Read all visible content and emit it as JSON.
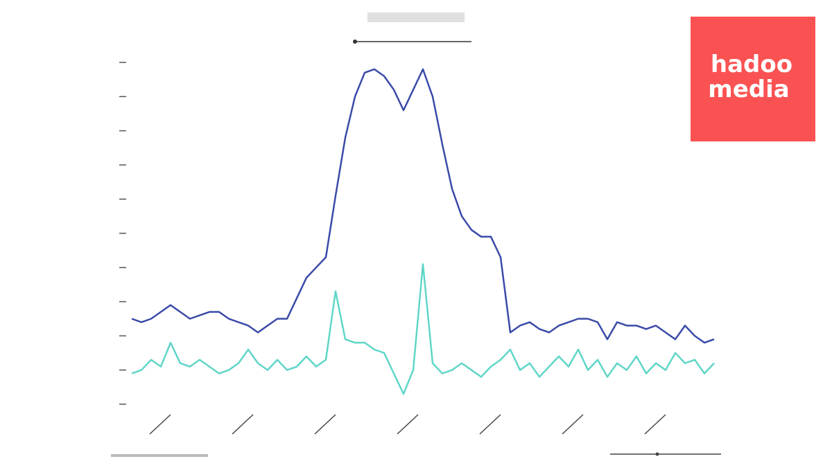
{
  "chart_data": {
    "type": "line",
    "x": [
      0,
      1,
      2,
      3,
      4,
      5,
      6,
      7,
      8,
      9,
      10,
      11,
      12,
      13,
      14,
      15,
      16,
      17,
      18,
      19,
      20,
      21,
      22,
      23,
      24,
      25,
      26,
      27,
      28,
      29,
      30,
      31,
      32,
      33,
      34,
      35,
      36,
      37,
      38,
      39,
      40,
      41,
      42,
      43,
      44,
      45,
      46,
      47,
      48,
      49,
      50,
      51,
      52,
      53,
      54,
      55,
      56,
      57,
      58,
      59,
      60
    ],
    "series": [
      {
        "color": "#3a4aa8",
        "values": [
          2.5,
          2.4,
          2.5,
          2.7,
          2.9,
          2.7,
          2.5,
          2.6,
          2.7,
          2.7,
          2.5,
          2.4,
          2.3,
          2.1,
          2.3,
          2.5,
          2.5,
          3.1,
          3.7,
          4.0,
          4.3,
          6.1,
          7.8,
          9.0,
          9.7,
          9.8,
          9.6,
          9.2,
          8.6,
          9.2,
          9.8,
          9.0,
          7.6,
          6.3,
          5.5,
          5.1,
          4.9,
          4.9,
          4.3,
          2.1,
          2.3,
          2.4,
          2.2,
          2.1,
          2.3,
          2.4,
          2.5,
          2.5,
          2.4,
          1.9,
          2.4,
          2.3,
          2.3,
          2.2,
          2.3,
          2.1,
          1.9,
          2.3,
          2.0,
          1.8,
          1.9
        ]
      },
      {
        "color": "#5fd6c8",
        "values": [
          0.9,
          1.0,
          1.3,
          1.1,
          1.8,
          1.2,
          1.1,
          1.3,
          1.1,
          0.9,
          1.0,
          1.2,
          1.6,
          1.2,
          1.0,
          1.3,
          1.0,
          1.1,
          1.4,
          1.1,
          1.3,
          3.3,
          1.9,
          1.8,
          1.8,
          1.6,
          1.5,
          0.9,
          0.3,
          1.0,
          4.1,
          1.2,
          0.9,
          1.0,
          1.2,
          1.0,
          0.8,
          1.1,
          1.3,
          1.6,
          1.0,
          1.2,
          0.8,
          1.1,
          1.4,
          1.1,
          1.6,
          1.0,
          1.3,
          0.8,
          1.2,
          1.0,
          1.4,
          0.9,
          1.2,
          1.0,
          1.5,
          1.2,
          1.3,
          0.9,
          1.2
        ]
      }
    ],
    "xlim": [
      0,
      60
    ],
    "xticks": [
      3,
      11.5,
      20,
      28.5,
      37,
      45.5,
      54
    ],
    "ylim": [
      0,
      10
    ],
    "yticks": [
      0,
      1,
      2,
      3,
      4,
      5,
      6,
      7,
      8,
      9,
      10
    ]
  },
  "logo": {
    "line1": "hadoo",
    "line2": "media"
  }
}
